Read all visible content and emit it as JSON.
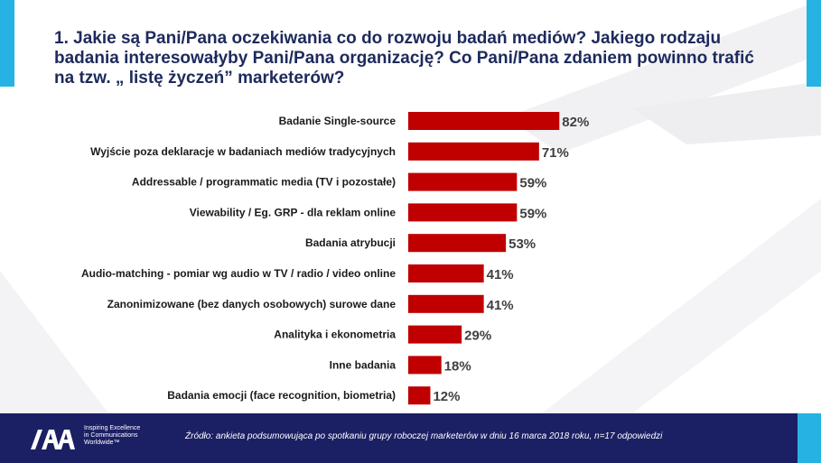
{
  "title": "1. Jakie są Pani/Pana oczekiwania co do rozwoju badań mediów? Jakiego rodzaju badania interesowałyby Pani/Pana organizację? Co Pani/Pana zdaniem powinno trafić na tzw. „ listę życzeń” marketerów?",
  "colors": {
    "bar": "#c00000",
    "title": "#1d2a5c",
    "footer": "#1b1f64",
    "accent": "#26b3e3"
  },
  "chart_data": {
    "type": "bar",
    "orientation": "horizontal",
    "categories": [
      "Badanie Single-source",
      "Wyjście poza deklaracje w badaniach mediów tradycyjnych",
      "Addressable / programmatic media (TV i pozostałe)",
      "Viewability / Eg. GRP - dla reklam online",
      "Badania atrybucji",
      "Audio-matching - pomiar wg audio w TV / radio / video online",
      "Zanonimizowane (bez danych osobowych) surowe dane",
      "Analityka i ekonometria",
      "Inne badania",
      "Badania emocji (face recognition, biometria)"
    ],
    "values": [
      82,
      71,
      59,
      59,
      53,
      41,
      41,
      29,
      18,
      12
    ],
    "value_labels": [
      "82%",
      "71%",
      "59%",
      "59%",
      "53%",
      "41%",
      "41%",
      "29%",
      "18%",
      "12%"
    ],
    "unit": "%",
    "xlim": [
      0,
      100
    ],
    "grid": false,
    "legend": "none"
  },
  "footer": {
    "logo_text": "IAA",
    "tagline": [
      "Inspiring Excellence",
      "in Communications",
      "Worldwide™"
    ],
    "source": "Źródło: ankieta podsumowująca po spotkaniu grupy roboczej marketerów w dniu 16 marca 2018 roku, n=17 odpowiedzi"
  }
}
